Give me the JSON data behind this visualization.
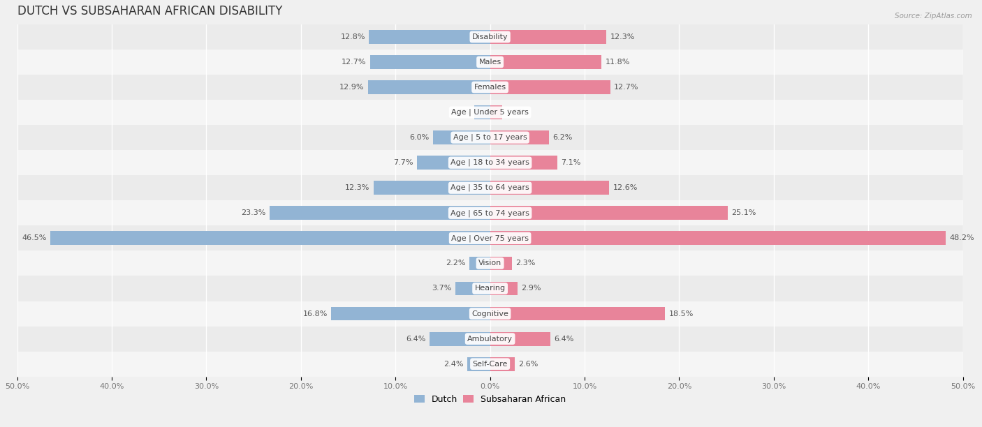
{
  "title": "DUTCH VS SUBSAHARAN AFRICAN DISABILITY",
  "source": "Source: ZipAtlas.com",
  "categories": [
    "Disability",
    "Males",
    "Females",
    "Age | Under 5 years",
    "Age | 5 to 17 years",
    "Age | 18 to 34 years",
    "Age | 35 to 64 years",
    "Age | 65 to 74 years",
    "Age | Over 75 years",
    "Vision",
    "Hearing",
    "Cognitive",
    "Ambulatory",
    "Self-Care"
  ],
  "dutch_values": [
    12.8,
    12.7,
    12.9,
    1.7,
    6.0,
    7.7,
    12.3,
    23.3,
    46.5,
    2.2,
    3.7,
    16.8,
    6.4,
    2.4
  ],
  "subsaharan_values": [
    12.3,
    11.8,
    12.7,
    1.3,
    6.2,
    7.1,
    12.6,
    25.1,
    48.2,
    2.3,
    2.9,
    18.5,
    6.4,
    2.6
  ],
  "dutch_color": "#92b4d4",
  "subsaharan_color": "#e8849a",
  "row_colors": [
    "#ebebeb",
    "#f5f5f5"
  ],
  "max_value": 50.0,
  "legend_dutch": "Dutch",
  "legend_subsaharan": "Subsaharan African",
  "title_fontsize": 12,
  "label_fontsize": 8,
  "value_fontsize": 8,
  "axis_tick_fontsize": 8,
  "bar_height": 0.55
}
